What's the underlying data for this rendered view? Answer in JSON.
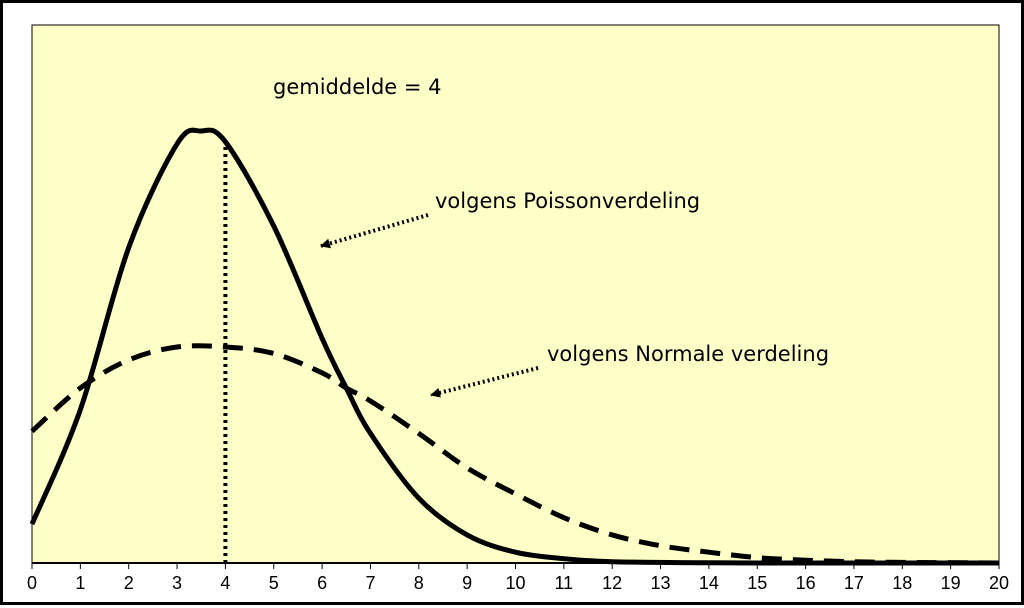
{
  "chart_data": {
    "type": "line",
    "title": "",
    "xlabel": "",
    "ylabel": "",
    "x_ticks": [
      "0",
      "1",
      "2",
      "3",
      "4",
      "5",
      "6",
      "7",
      "8",
      "9",
      "10",
      "11",
      "12",
      "13",
      "14",
      "15",
      "16",
      "17",
      "18",
      "19",
      "20"
    ],
    "xlim": [
      0,
      20
    ],
    "ylim": [
      0,
      0.2
    ],
    "grid": false,
    "mean_x": 4,
    "series": [
      {
        "name": "",
        "style": "solid",
        "x": [
          0,
          1,
          2,
          3,
          3.5,
          4,
          5,
          6,
          6.5,
          7,
          8,
          9,
          10,
          11,
          12,
          14,
          16,
          18,
          20
        ],
        "values": [
          0.018,
          0.071,
          0.146,
          0.194,
          0.2,
          0.195,
          0.156,
          0.104,
          0.081,
          0.06,
          0.03,
          0.013,
          0.005,
          0.002,
          0.0006,
          0.0001,
          0.0,
          0.0,
          0.0
        ]
      },
      {
        "name": "",
        "style": "dashed",
        "x": [
          0,
          1,
          2,
          3,
          4,
          5,
          6,
          6.5,
          7,
          8,
          9,
          10,
          11,
          12,
          13,
          14,
          15,
          16,
          17,
          18,
          20
        ],
        "values": [
          0.061,
          0.081,
          0.094,
          0.1,
          0.1,
          0.097,
          0.088,
          0.081,
          0.075,
          0.06,
          0.044,
          0.032,
          0.021,
          0.013,
          0.008,
          0.005,
          0.0025,
          0.0013,
          0.0006,
          0.0003,
          0.0
        ]
      }
    ],
    "annotations": [
      {
        "text": "gemiddelde = 4"
      },
      {
        "text": "volgens Poissonverdeling"
      },
      {
        "text": "volgens Normale verdeling"
      }
    ],
    "colors": {
      "plot_background": "#ffffc8",
      "line": "#000000"
    }
  }
}
